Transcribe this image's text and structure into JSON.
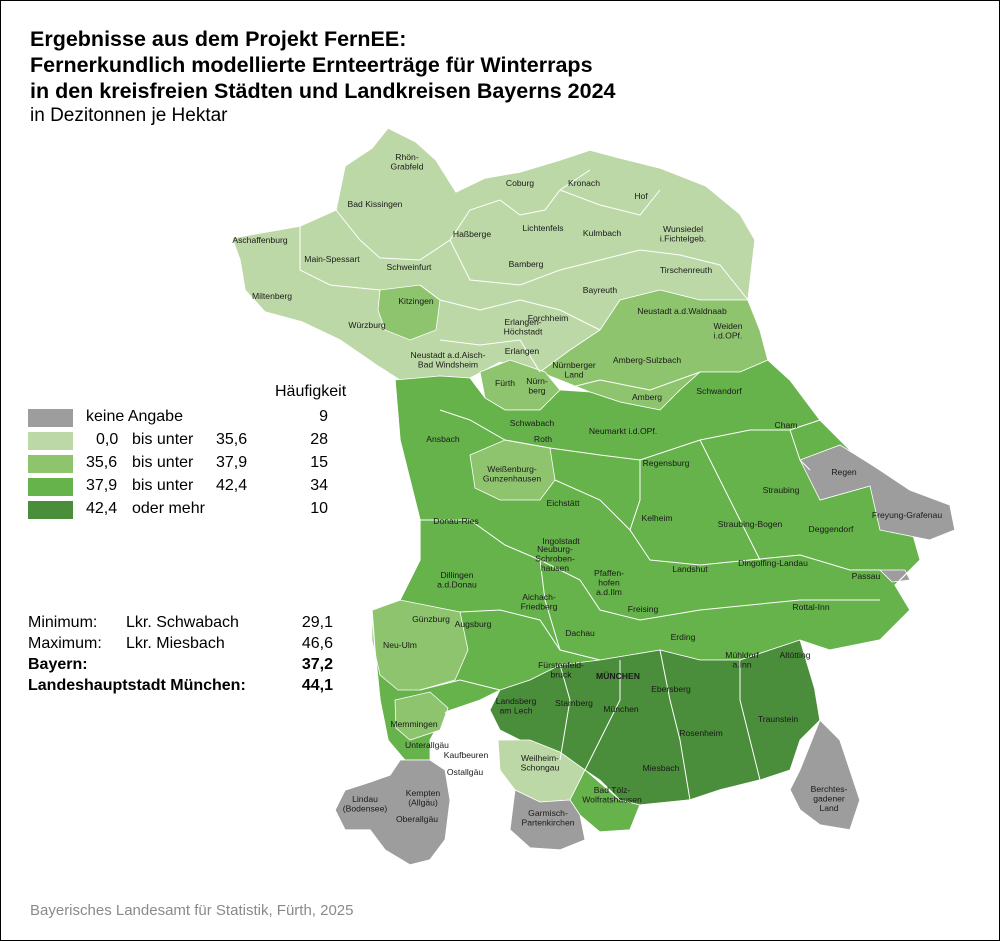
{
  "title": {
    "lines": [
      "Ergebnisse aus dem Projekt FernEE:",
      "Fernerkundlich modellierte Ernteerträge für Winterraps",
      "in den kreisfreien Städten und Landkreisen Bayerns 2024"
    ],
    "subtitle": "in Dezitonnen je Hektar"
  },
  "legend": {
    "header": "Häufigkeit",
    "classes": [
      {
        "id": "na",
        "from": "keine Angabe",
        "word": "",
        "to": "",
        "count": "9",
        "color": "#9d9d9d"
      },
      {
        "id": "c1",
        "from": "0,0",
        "word": "bis unter",
        "to": "35,6",
        "count": "28",
        "color": "#bcd8a6"
      },
      {
        "id": "c2",
        "from": "35,6",
        "word": "bis unter",
        "to": "37,9",
        "count": "15",
        "color": "#8ec46e"
      },
      {
        "id": "c3",
        "from": "37,9",
        "word": "bis unter",
        "to": "42,4",
        "count": "34",
        "color": "#66b24b"
      },
      {
        "id": "c4",
        "from": "42,4",
        "word": "oder mehr",
        "to": "",
        "count": "10",
        "color": "#4a8d3a"
      }
    ]
  },
  "stats": {
    "min": {
      "label": "Minimum:",
      "name": "Lkr. Schwabach",
      "value": "29,1"
    },
    "max": {
      "label": "Maximum:",
      "name": "Lkr. Miesbach",
      "value": "46,6"
    },
    "bayern": {
      "label": "Bayern:",
      "value": "37,2"
    },
    "munich": {
      "label": "Landeshauptstadt München:",
      "value": "44,1"
    }
  },
  "source": "Bayerisches Landesamt für Statistik, Fürth, 2025",
  "regions": [
    {
      "name": "Rhön-\nGrabfeld",
      "class": "c1"
    },
    {
      "name": "Coburg",
      "class": "c1"
    },
    {
      "name": "Kronach",
      "class": "c1"
    },
    {
      "name": "Hof",
      "class": "c1"
    },
    {
      "name": "Bad Kissingen",
      "class": "c1"
    },
    {
      "name": "Aschaffenburg",
      "class": "c1"
    },
    {
      "name": "Haßberge",
      "class": "c1"
    },
    {
      "name": "Lichtenfels",
      "class": "c1"
    },
    {
      "name": "Kulmbach",
      "class": "c1"
    },
    {
      "name": "Wunsiedel\ni.Fichtelgeb.",
      "class": "c1"
    },
    {
      "name": "Main-Spessart",
      "class": "c1"
    },
    {
      "name": "Schweinfurt",
      "class": "c1"
    },
    {
      "name": "Bamberg",
      "class": "c1"
    },
    {
      "name": "Tirschenreuth",
      "class": "c1"
    },
    {
      "name": "Miltenberg",
      "class": "c1"
    },
    {
      "name": "Bayreuth",
      "class": "c1"
    },
    {
      "name": "Kitzingen",
      "class": "c2"
    },
    {
      "name": "Forchheim",
      "class": "c1"
    },
    {
      "name": "Neustadt a.d.Waldnaab",
      "class": "c2"
    },
    {
      "name": "Würzburg",
      "class": "c1"
    },
    {
      "name": "Erlangen-\nHöchstadt",
      "class": "c1"
    },
    {
      "name": "Weiden\ni.d.OPf.",
      "class": "c2"
    },
    {
      "name": "Neustadt a.d.Aisch-\nBad Windsheim",
      "class": "c1"
    },
    {
      "name": "Erlangen",
      "class": "c1"
    },
    {
      "name": "Amberg-Sulzbach",
      "class": "c2"
    },
    {
      "name": "Nürnberger\nLand",
      "class": "c2"
    },
    {
      "name": "Fürth",
      "class": "c2"
    },
    {
      "name": "Nürn-\nberg",
      "class": "c1"
    },
    {
      "name": "Schwandorf",
      "class": "c3"
    },
    {
      "name": "Amberg",
      "class": "c2"
    },
    {
      "name": "Schwabach",
      "class": "c1"
    },
    {
      "name": "Ansbach",
      "class": "c3"
    },
    {
      "name": "Roth",
      "class": "c3"
    },
    {
      "name": "Neumarkt i.d.OPf.",
      "class": "c3"
    },
    {
      "name": "Cham",
      "class": "c3"
    },
    {
      "name": "Regensburg",
      "class": "c3"
    },
    {
      "name": "Regen",
      "class": "na"
    },
    {
      "name": "Weißenburg-\nGunzenhausen",
      "class": "c2"
    },
    {
      "name": "Straubing",
      "class": "c3"
    },
    {
      "name": "Eichstätt",
      "class": "c3"
    },
    {
      "name": "Freyung-Grafenau",
      "class": "na"
    },
    {
      "name": "Donau-Ries",
      "class": "c3"
    },
    {
      "name": "Kelheim",
      "class": "c3"
    },
    {
      "name": "Straubing-Bogen",
      "class": "c3"
    },
    {
      "name": "Deggendorf",
      "class": "c3"
    },
    {
      "name": "Ingolstadt",
      "class": "c3"
    },
    {
      "name": "Neuburg-\nSchroben-\nhausen",
      "class": "c3"
    },
    {
      "name": "Dingolfing-Landau",
      "class": "c3"
    },
    {
      "name": "Landshut",
      "class": "c3"
    },
    {
      "name": "Passau",
      "class": "c3"
    },
    {
      "name": "Dillingen\na.d.Donau",
      "class": "c3"
    },
    {
      "name": "Pfaffen-\nhofen\na.d.Ilm",
      "class": "c3"
    },
    {
      "name": "Aichach-\nFriedberg",
      "class": "c3"
    },
    {
      "name": "Freising",
      "class": "c3"
    },
    {
      "name": "Rottal-Inn",
      "class": "c3"
    },
    {
      "name": "Günzburg",
      "class": "c2"
    },
    {
      "name": "Augsburg",
      "class": "c3"
    },
    {
      "name": "Dachau",
      "class": "c3"
    },
    {
      "name": "Erding",
      "class": "c3"
    },
    {
      "name": "Neu-Ulm",
      "class": "c2"
    },
    {
      "name": "Mühldorf\na.Inn",
      "class": "c3"
    },
    {
      "name": "Altötting",
      "class": "c3"
    },
    {
      "name": "Fürstenfeld-\nbruck",
      "class": "c4"
    },
    {
      "name": "MÜNCHEN",
      "class": "c4"
    },
    {
      "name": "Memmingen",
      "class": "c3"
    },
    {
      "name": "Ebersberg",
      "class": "c4"
    },
    {
      "name": "Landsberg\nam Lech",
      "class": "c4"
    },
    {
      "name": "Starnberg",
      "class": "c4"
    },
    {
      "name": "München",
      "class": "c4"
    },
    {
      "name": "Unterallgäu",
      "class": "c3"
    },
    {
      "name": "Traunstein",
      "class": "c4"
    },
    {
      "name": "Rosenheim",
      "class": "c4"
    },
    {
      "name": "Kaufbeuren",
      "class": "c3"
    },
    {
      "name": "Weilheim-\nSchongau",
      "class": "c1"
    },
    {
      "name": "Ostallgäu",
      "class": "c3"
    },
    {
      "name": "Miesbach",
      "class": "c4"
    },
    {
      "name": "Kempten\n(Allgäu)",
      "class": "na"
    },
    {
      "name": "Berchtes-\ngadener\nLand",
      "class": "na"
    },
    {
      "name": "Lindau\n(Bodensee)",
      "class": "na"
    },
    {
      "name": "Bad Tölz-\nWolfratshausen",
      "class": "c3"
    },
    {
      "name": "Oberallgäu",
      "class": "na"
    },
    {
      "name": "Garmisch-\nPartenkirchen",
      "class": "na"
    }
  ]
}
